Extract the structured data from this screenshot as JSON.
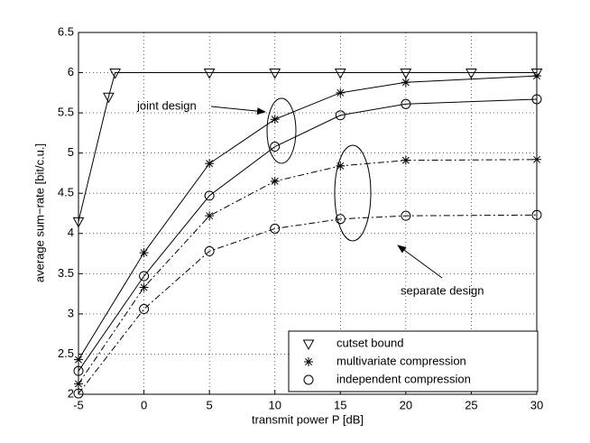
{
  "chart_data": {
    "type": "line",
    "xlabel": "transmit power P [dB]",
    "ylabel": "average sum−rate [bit/c.u.]",
    "xlim": [
      -5,
      30
    ],
    "xticks": [
      -5,
      0,
      5,
      10,
      15,
      20,
      25,
      30
    ],
    "ylim": [
      2,
      6.5
    ],
    "yticks": [
      2,
      2.5,
      3,
      3.5,
      4,
      4.5,
      5,
      5.5,
      6,
      6.5
    ],
    "grid": true,
    "series": [
      {
        "marker": "triangle",
        "linestyle": "solid",
        "color": "#000000",
        "x": [
          -5,
          -2.7,
          -2.2,
          5,
          10,
          15,
          20,
          25,
          30
        ],
        "values": [
          4.15,
          5.7,
          6,
          6,
          6,
          6,
          6,
          6,
          6
        ]
      },
      {
        "marker": "star",
        "linestyle": "solid",
        "color": "#000000",
        "x": [
          -5,
          0,
          5,
          10,
          15,
          20,
          30
        ],
        "values": [
          2.43,
          3.76,
          4.87,
          5.42,
          5.75,
          5.88,
          5.96
        ]
      },
      {
        "marker": "circle",
        "linestyle": "solid",
        "color": "#000000",
        "x": [
          -5,
          0,
          5,
          10,
          15,
          20,
          30
        ],
        "values": [
          2.29,
          3.47,
          4.47,
          5.08,
          5.47,
          5.61,
          5.67
        ]
      },
      {
        "marker": "star",
        "linestyle": "dashdot",
        "color": "#000000",
        "x": [
          -5,
          0,
          5,
          10,
          15,
          20,
          30
        ],
        "values": [
          2.13,
          3.33,
          4.22,
          4.65,
          4.84,
          4.91,
          4.92
        ]
      },
      {
        "marker": "circle",
        "linestyle": "dashdot",
        "color": "#000000",
        "x": [
          -5,
          0,
          5,
          10,
          15,
          20,
          30
        ],
        "values": [
          2.01,
          3.06,
          3.78,
          4.06,
          4.18,
          4.22,
          4.23
        ]
      }
    ],
    "legend": [
      {
        "label": "cutset bound",
        "marker": "triangle"
      },
      {
        "label": "multivariate compression",
        "marker": "star"
      },
      {
        "label": "independent compression",
        "marker": "circle"
      }
    ],
    "legend_position": "lower right",
    "annotations": [
      "joint design",
      "separate design"
    ]
  }
}
